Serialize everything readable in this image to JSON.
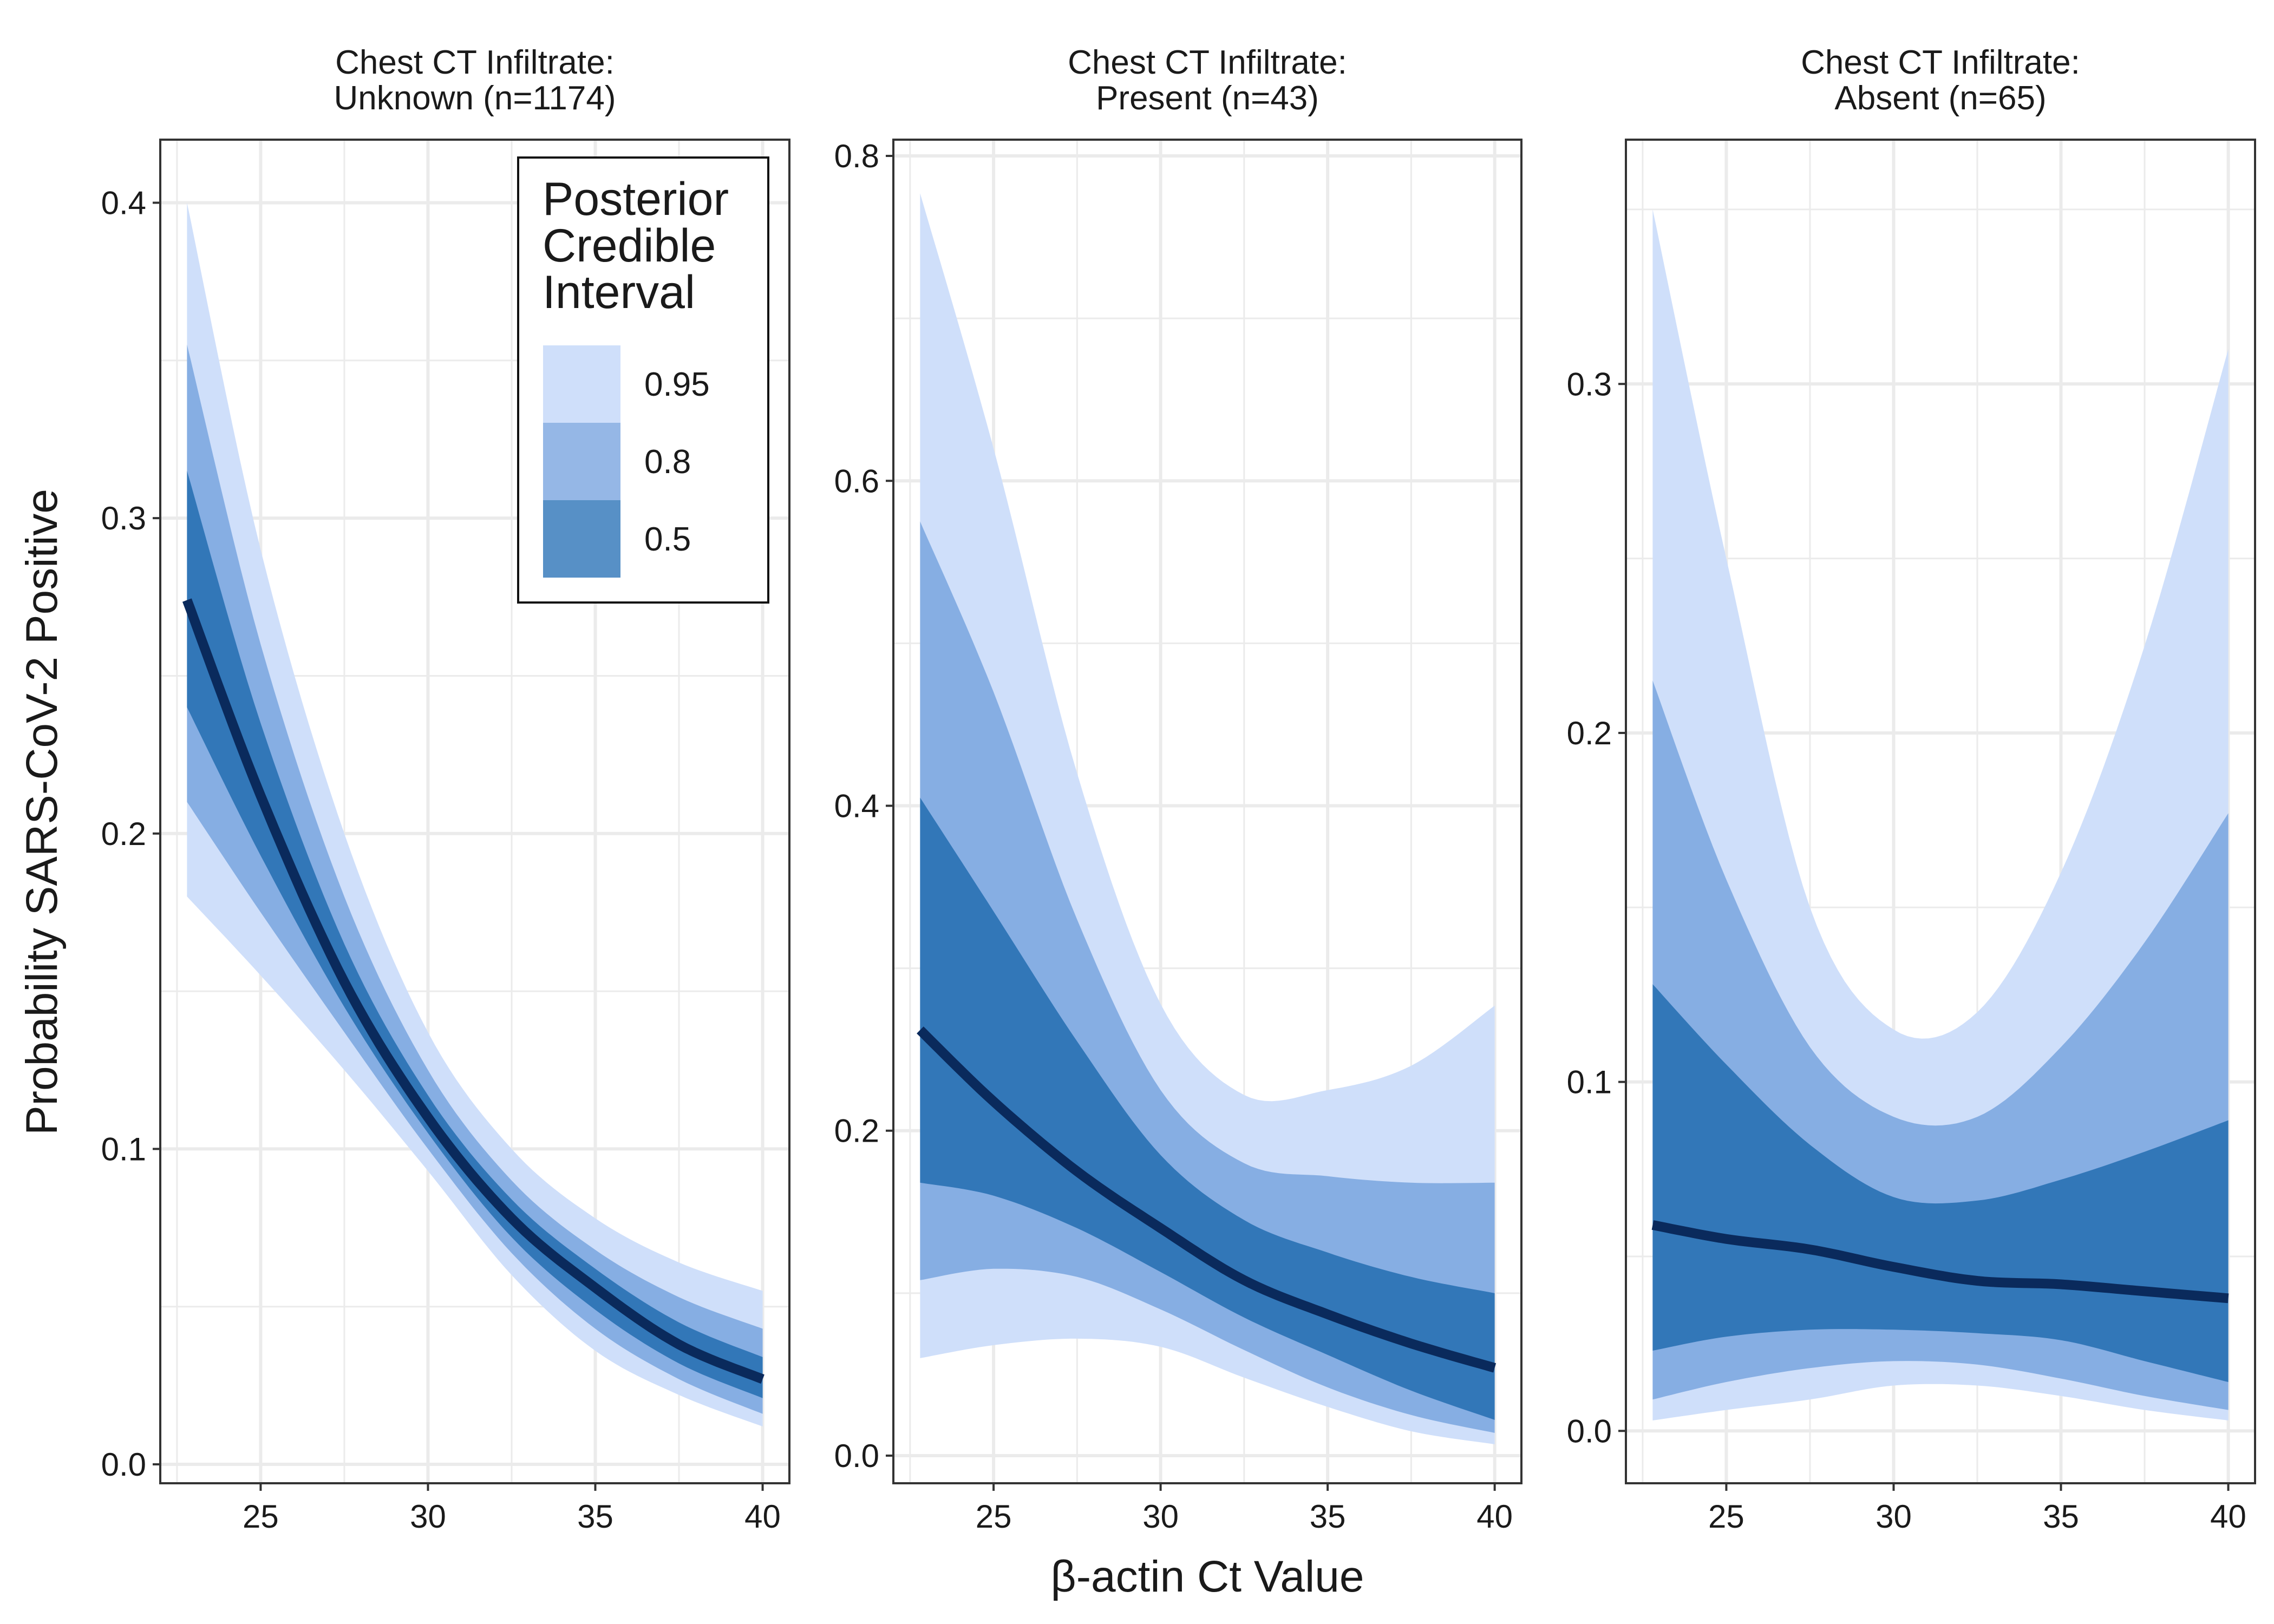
{
  "figure": {
    "ylabel": "Probability SARS-CoV-2 Positive",
    "xlabel": "β-actin Ct Value"
  },
  "legend": {
    "title_lines": [
      "Posterior",
      "Credible",
      "Interval"
    ],
    "items": [
      {
        "label": "0.95",
        "color": "#cfdffa"
      },
      {
        "label": "0.8",
        "color": "#95b7e6"
      },
      {
        "label": "0.5",
        "color": "#5790c6"
      }
    ],
    "placement": "top-right of first panel"
  },
  "colors": {
    "band95": "#cfdffa",
    "band80": "#86aee3",
    "band50": "#3277b8",
    "median": "#0a2a5c",
    "grid": "#ebebeb",
    "panel_border": "#333333"
  },
  "chart_data": [
    {
      "type": "area",
      "title_lines": [
        "Chest CT Infiltrate:",
        "Unknown (n=1174)"
      ],
      "xlim": [
        22,
        40.8
      ],
      "ylim": [
        -0.006,
        0.42
      ],
      "xticks": [
        25,
        30,
        35,
        40
      ],
      "yticks": [
        0.0,
        0.1,
        0.2,
        0.3,
        0.4
      ],
      "ytick_labels": [
        "0.0",
        "0.1",
        "0.2",
        "0.3",
        "0.4"
      ],
      "grid": true,
      "x": [
        22.8,
        25,
        27.5,
        30,
        32.5,
        35,
        37.5,
        40
      ],
      "median": [
        0.274,
        0.212,
        0.153,
        0.11,
        0.078,
        0.056,
        0.038,
        0.027
      ],
      "lo95": [
        0.18,
        0.155,
        0.125,
        0.093,
        0.06,
        0.036,
        0.022,
        0.012
      ],
      "hi95": [
        0.4,
        0.29,
        0.2,
        0.137,
        0.1,
        0.078,
        0.064,
        0.055
      ],
      "lo80": [
        0.21,
        0.175,
        0.137,
        0.1,
        0.067,
        0.043,
        0.027,
        0.016
      ],
      "hi80": [
        0.355,
        0.26,
        0.18,
        0.125,
        0.09,
        0.068,
        0.053,
        0.043
      ],
      "lo50": [
        0.24,
        0.193,
        0.145,
        0.105,
        0.072,
        0.049,
        0.032,
        0.021
      ],
      "hi50": [
        0.315,
        0.235,
        0.165,
        0.117,
        0.084,
        0.062,
        0.045,
        0.034
      ]
    },
    {
      "type": "area",
      "title_lines": [
        "Chest CT Infiltrate:",
        "Present (n=43)"
      ],
      "xlim": [
        22,
        40.8
      ],
      "ylim": [
        -0.017,
        0.81
      ],
      "xticks": [
        25,
        30,
        35,
        40
      ],
      "yticks": [
        0.0,
        0.2,
        0.4,
        0.6,
        0.8
      ],
      "ytick_labels": [
        "0.0",
        "0.2",
        "0.4",
        "0.6",
        "0.8"
      ],
      "grid": true,
      "x": [
        22.8,
        25,
        27.5,
        30,
        32.5,
        35,
        37.5,
        40
      ],
      "median": [
        0.262,
        0.218,
        0.175,
        0.14,
        0.108,
        0.087,
        0.069,
        0.054
      ],
      "lo95": [
        0.06,
        0.068,
        0.072,
        0.067,
        0.048,
        0.03,
        0.015,
        0.007
      ],
      "hi95": [
        0.777,
        0.62,
        0.42,
        0.278,
        0.222,
        0.225,
        0.24,
        0.277
      ],
      "lo80": [
        0.108,
        0.115,
        0.11,
        0.09,
        0.065,
        0.042,
        0.025,
        0.014
      ],
      "hi80": [
        0.575,
        0.47,
        0.33,
        0.225,
        0.18,
        0.172,
        0.168,
        0.168
      ],
      "lo50": [
        0.168,
        0.16,
        0.14,
        0.113,
        0.085,
        0.062,
        0.04,
        0.022
      ],
      "hi50": [
        0.405,
        0.335,
        0.255,
        0.185,
        0.145,
        0.125,
        0.11,
        0.1
      ]
    },
    {
      "type": "area",
      "title_lines": [
        "Chest CT Infiltrate:",
        "Absent (n=65)"
      ],
      "xlim": [
        22,
        40.8
      ],
      "ylim": [
        -0.015,
        0.37
      ],
      "xticks": [
        25,
        30,
        35,
        40
      ],
      "yticks": [
        0.0,
        0.1,
        0.2,
        0.3
      ],
      "ytick_labels": [
        "0.0",
        "0.1",
        "0.2",
        "0.3"
      ],
      "grid": true,
      "x": [
        22.8,
        25,
        27.5,
        30,
        32.5,
        35,
        37.5,
        40
      ],
      "median": [
        0.059,
        0.055,
        0.052,
        0.047,
        0.043,
        0.042,
        0.04,
        0.038
      ],
      "lo95": [
        0.003,
        0.006,
        0.009,
        0.013,
        0.013,
        0.01,
        0.006,
        0.003
      ],
      "hi95": [
        0.35,
        0.25,
        0.15,
        0.115,
        0.12,
        0.16,
        0.225,
        0.31
      ],
      "lo80": [
        0.009,
        0.014,
        0.018,
        0.02,
        0.019,
        0.015,
        0.01,
        0.006
      ],
      "hi80": [
        0.215,
        0.158,
        0.11,
        0.09,
        0.09,
        0.11,
        0.14,
        0.177
      ],
      "lo50": [
        0.023,
        0.027,
        0.029,
        0.029,
        0.028,
        0.026,
        0.02,
        0.014
      ],
      "hi50": [
        0.128,
        0.105,
        0.082,
        0.067,
        0.066,
        0.072,
        0.08,
        0.089
      ]
    }
  ]
}
